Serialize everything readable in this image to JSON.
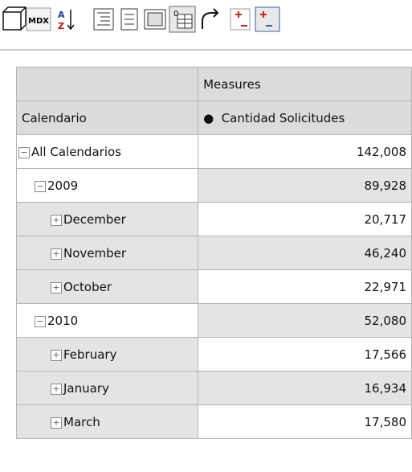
{
  "toolbar": {
    "mdx": "MDX",
    "sort_a": "A",
    "sort_z": "Z",
    "zero": "0"
  },
  "table": {
    "measures_header": "Measures",
    "row_header": "Calendario",
    "measure": "Cantidad Solicitudes",
    "rows": [
      {
        "label": "All Calendarios",
        "level": 0,
        "expanded": true,
        "value": "142,008"
      },
      {
        "label": "2009",
        "level": 1,
        "expanded": true,
        "value": "89,928"
      },
      {
        "label": "December",
        "level": 2,
        "expanded": false,
        "value": "20,717"
      },
      {
        "label": "November",
        "level": 2,
        "expanded": false,
        "value": "46,240"
      },
      {
        "label": "October",
        "level": 2,
        "expanded": false,
        "value": "22,971"
      },
      {
        "label": "2010",
        "level": 1,
        "expanded": true,
        "value": "52,080"
      },
      {
        "label": "February",
        "level": 2,
        "expanded": false,
        "value": "17,566"
      },
      {
        "label": "January",
        "level": 2,
        "expanded": false,
        "value": "16,934"
      },
      {
        "label": "March",
        "level": 2,
        "expanded": false,
        "value": "17,580"
      }
    ]
  }
}
